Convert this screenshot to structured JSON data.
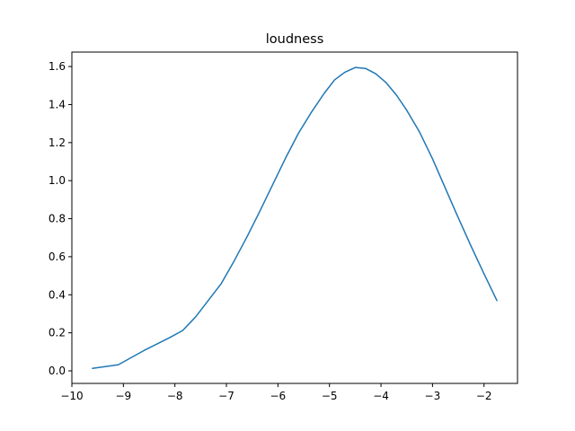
{
  "chart_data": {
    "type": "line",
    "title": "loudness",
    "xlabel": "",
    "ylabel": "",
    "xlim": [
      -10.0,
      -1.35
    ],
    "ylim": [
      -0.066,
      1.676
    ],
    "x_ticks": [
      -10,
      -9,
      -8,
      -7,
      -6,
      -5,
      -4,
      -3,
      -2
    ],
    "x_tick_labels": [
      "−10",
      "−9",
      "−8",
      "−7",
      "−6",
      "−5",
      "−4",
      "−3",
      "−2"
    ],
    "y_ticks": [
      0.0,
      0.2,
      0.4,
      0.6,
      0.8,
      1.0,
      1.2,
      1.4,
      1.6
    ],
    "y_tick_labels": [
      "0.0",
      "0.2",
      "0.4",
      "0.6",
      "0.8",
      "1.0",
      "1.2",
      "1.4",
      "1.6"
    ],
    "grid": false,
    "legend": "none",
    "series": [
      {
        "color": "#1f77b4",
        "x": [
          -9.6,
          -9.1,
          -8.6,
          -8.1,
          -7.85,
          -7.6,
          -7.35,
          -7.1,
          -6.85,
          -6.6,
          -6.35,
          -6.1,
          -5.85,
          -5.6,
          -5.35,
          -5.1,
          -4.9,
          -4.7,
          -4.5,
          -4.3,
          -4.1,
          -3.9,
          -3.7,
          -3.5,
          -3.25,
          -3.0,
          -2.75,
          -2.5,
          -2.25,
          -2.0,
          -1.75
        ],
        "y": [
          0.013,
          0.032,
          0.107,
          0.175,
          0.212,
          0.283,
          0.371,
          0.459,
          0.578,
          0.705,
          0.84,
          0.98,
          1.12,
          1.25,
          1.36,
          1.46,
          1.53,
          1.57,
          1.595,
          1.59,
          1.562,
          1.515,
          1.45,
          1.37,
          1.255,
          1.115,
          0.96,
          0.805,
          0.655,
          0.51,
          0.37
        ]
      }
    ]
  }
}
